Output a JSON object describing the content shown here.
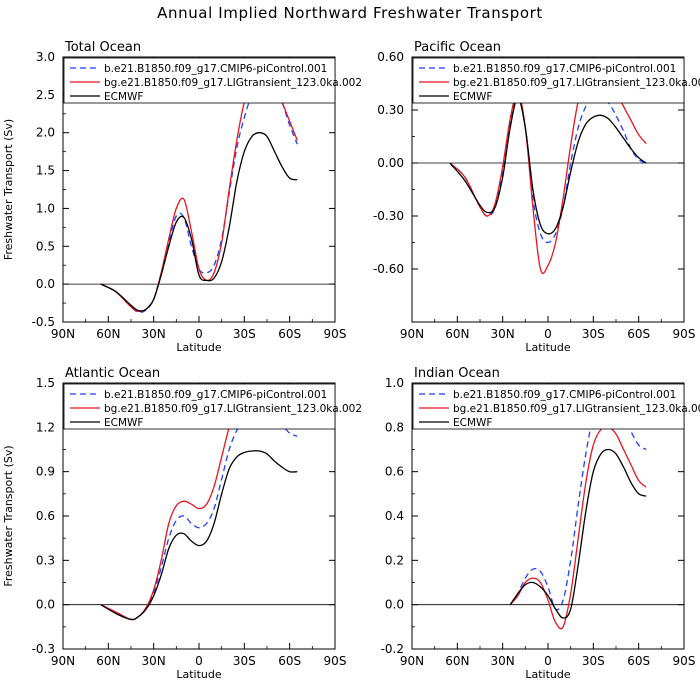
{
  "title": "Annual Implied Northward Freshwater Transport",
  "legend_entries": [
    {
      "name": "b.e21.B1850.f09_g17.CMIP6-piControl.001",
      "color": "#1f3fff",
      "dash": "6,4"
    },
    {
      "name": "bg.e21.B1850.f09_g17.LIGtransient_123.0ka.002",
      "color": "#e8141e",
      "dash": ""
    },
    {
      "name": "ECMWF",
      "color": "#000000",
      "dash": ""
    }
  ],
  "chart_data": [
    {
      "type": "line",
      "title": "Total Ocean",
      "xlabel": "Latitude",
      "ylabel": "Freshwater Transport (Sv)",
      "xlim": [
        90,
        -90
      ],
      "ylim": [
        -0.5,
        3.0
      ],
      "x_ticks": [
        90,
        60,
        30,
        0,
        -30,
        -60,
        -90
      ],
      "x_tick_labels": [
        "90N",
        "60N",
        "30N",
        "0",
        "30S",
        "60S",
        "90S"
      ],
      "y_ticks": [
        -0.5,
        0.0,
        0.5,
        1.0,
        1.5,
        2.0,
        2.5,
        3.0
      ],
      "y_tick_labels": [
        "-0.5",
        "0.0",
        "0.5",
        "1.0",
        "1.5",
        "2.0",
        "2.5",
        "3.0"
      ],
      "series": [
        {
          "name": "b.e21.B1850.f09_g17.CMIP6-piControl.001",
          "x": [
            65,
            55,
            45,
            40,
            35,
            30,
            25,
            20,
            15,
            10,
            5,
            0,
            -5,
            -10,
            -15,
            -20,
            -25,
            -30,
            -35,
            -40,
            -45,
            -50,
            -55,
            -60,
            -65
          ],
          "y": [
            0.0,
            -0.1,
            -0.3,
            -0.37,
            -0.34,
            -0.2,
            0.15,
            0.55,
            0.9,
            0.88,
            0.5,
            0.2,
            0.15,
            0.25,
            0.6,
            1.2,
            1.8,
            2.2,
            2.5,
            2.6,
            2.65,
            2.6,
            2.4,
            2.1,
            1.85
          ]
        },
        {
          "name": "bg.e21.B1850.f09_g17.LIGtransient_123.0ka.002",
          "x": [
            65,
            55,
            45,
            40,
            35,
            30,
            25,
            20,
            15,
            10,
            5,
            0,
            -5,
            -10,
            -15,
            -20,
            -25,
            -30,
            -35,
            -40,
            -45,
            -50,
            -55,
            -60,
            -65
          ],
          "y": [
            0.0,
            -0.1,
            -0.3,
            -0.36,
            -0.33,
            -0.2,
            0.15,
            0.6,
            1.0,
            1.12,
            0.7,
            0.2,
            0.05,
            0.15,
            0.55,
            1.25,
            1.9,
            2.4,
            2.65,
            2.72,
            2.7,
            2.6,
            2.4,
            2.15,
            1.9
          ]
        },
        {
          "name": "ECMWF",
          "x": [
            65,
            55,
            45,
            40,
            35,
            30,
            25,
            20,
            15,
            10,
            5,
            0,
            -5,
            -10,
            -15,
            -20,
            -25,
            -30,
            -35,
            -40,
            -45,
            -50,
            -55,
            -60,
            -65
          ],
          "y": [
            0.0,
            -0.1,
            -0.28,
            -0.35,
            -0.33,
            -0.2,
            0.12,
            0.5,
            0.82,
            0.88,
            0.6,
            0.12,
            0.05,
            0.08,
            0.3,
            0.75,
            1.35,
            1.75,
            1.95,
            2.0,
            1.95,
            1.75,
            1.55,
            1.4,
            1.38
          ]
        }
      ]
    },
    {
      "type": "line",
      "title": "Pacific Ocean",
      "xlabel": "Latitude",
      "ylabel": "",
      "xlim": [
        90,
        -90
      ],
      "ylim": [
        -0.9,
        0.6
      ],
      "x_ticks": [
        90,
        60,
        30,
        0,
        -30,
        -60,
        -90
      ],
      "x_tick_labels": [
        "90N",
        "60N",
        "30N",
        "0",
        "30S",
        "60S",
        "90S"
      ],
      "y_ticks": [
        -0.6,
        -0.3,
        0.0,
        0.3,
        0.6
      ],
      "y_tick_labels": [
        "-0.60",
        "-0.30",
        "0.00",
        "0.30",
        "0.60"
      ],
      "series": [
        {
          "name": "b.e21.B1850.f09_g17.CMIP6-piControl.001",
          "x": [
            65,
            55,
            45,
            40,
            35,
            30,
            25,
            20,
            15,
            10,
            5,
            0,
            -5,
            -10,
            -15,
            -20,
            -25,
            -30,
            -35,
            -40,
            -45,
            -50,
            -55,
            -60,
            -65
          ],
          "y": [
            0.0,
            -0.08,
            -0.25,
            -0.3,
            -0.25,
            -0.05,
            0.22,
            0.37,
            0.2,
            -0.2,
            -0.4,
            -0.45,
            -0.4,
            -0.25,
            0.0,
            0.2,
            0.32,
            0.37,
            0.37,
            0.34,
            0.27,
            0.18,
            0.08,
            0.02,
            0.0
          ]
        },
        {
          "name": "bg.e21.B1850.f09_g17.LIGtransient_123.0ka.002",
          "x": [
            65,
            55,
            45,
            40,
            35,
            30,
            25,
            20,
            15,
            10,
            5,
            0,
            -5,
            -10,
            -15,
            -20,
            -25,
            -30,
            -35,
            -40,
            -45,
            -50,
            -55,
            -60,
            -65
          ],
          "y": [
            0.0,
            -0.08,
            -0.25,
            -0.3,
            -0.23,
            -0.02,
            0.25,
            0.4,
            0.2,
            -0.25,
            -0.6,
            -0.58,
            -0.45,
            -0.2,
            0.1,
            0.35,
            0.47,
            0.5,
            0.5,
            0.46,
            0.4,
            0.32,
            0.24,
            0.16,
            0.11
          ]
        },
        {
          "name": "ECMWF",
          "x": [
            65,
            55,
            45,
            40,
            35,
            30,
            25,
            20,
            15,
            10,
            5,
            0,
            -5,
            -10,
            -15,
            -20,
            -25,
            -30,
            -35,
            -40,
            -45,
            -50,
            -55,
            -60,
            -65
          ],
          "y": [
            0.0,
            -0.1,
            -0.24,
            -0.28,
            -0.25,
            -0.08,
            0.2,
            0.37,
            0.2,
            -0.15,
            -0.35,
            -0.4,
            -0.37,
            -0.25,
            -0.05,
            0.12,
            0.22,
            0.26,
            0.27,
            0.25,
            0.2,
            0.14,
            0.08,
            0.03,
            0.0
          ]
        }
      ]
    },
    {
      "type": "line",
      "title": "Atlantic Ocean",
      "xlabel": "Latitude",
      "ylabel": "Freshwater Transport (Sv)",
      "xlim": [
        90,
        -90
      ],
      "ylim": [
        -0.3,
        1.5
      ],
      "x_ticks": [
        90,
        60,
        30,
        0,
        -30,
        -60,
        -90
      ],
      "x_tick_labels": [
        "90N",
        "60N",
        "30N",
        "0",
        "30S",
        "60S",
        "90S"
      ],
      "y_ticks": [
        -0.3,
        0.0,
        0.3,
        0.6,
        0.9,
        1.2,
        1.5
      ],
      "y_tick_labels": [
        "-0.3",
        "0.0",
        "0.3",
        "0.6",
        "0.9",
        "1.2",
        "1.5"
      ],
      "series": [
        {
          "name": "b.e21.B1850.f09_g17.CMIP6-piControl.001",
          "x": [
            65,
            55,
            45,
            40,
            35,
            30,
            25,
            20,
            15,
            10,
            5,
            0,
            -5,
            -10,
            -15,
            -20,
            -25,
            -30,
            -35,
            -40,
            -45,
            -50,
            -55,
            -60,
            -65
          ],
          "y": [
            0.0,
            -0.05,
            -0.1,
            -0.08,
            -0.02,
            0.08,
            0.25,
            0.45,
            0.57,
            0.6,
            0.55,
            0.52,
            0.55,
            0.65,
            0.85,
            1.05,
            1.18,
            1.26,
            1.3,
            1.33,
            1.32,
            1.28,
            1.22,
            1.16,
            1.14
          ]
        },
        {
          "name": "bg.e21.B1850.f09_g17.LIGtransient_123.0ka.002",
          "x": [
            65,
            55,
            45,
            40,
            35,
            30,
            25,
            20,
            15,
            10,
            5,
            0,
            -5,
            -10,
            -15,
            -20,
            -25,
            -30,
            -35,
            -40,
            -45,
            -50,
            -55,
            -60,
            -65
          ],
          "y": [
            0.0,
            -0.05,
            -0.1,
            -0.08,
            -0.02,
            0.1,
            0.3,
            0.55,
            0.67,
            0.7,
            0.68,
            0.65,
            0.68,
            0.8,
            1.0,
            1.2,
            1.33,
            1.4,
            1.44,
            1.45,
            1.43,
            1.38,
            1.32,
            1.27,
            1.25
          ]
        },
        {
          "name": "ECMWF",
          "x": [
            65,
            55,
            45,
            40,
            35,
            30,
            25,
            20,
            15,
            10,
            5,
            0,
            -5,
            -10,
            -15,
            -20,
            -25,
            -30,
            -35,
            -40,
            -45,
            -50,
            -55,
            -60,
            -65
          ],
          "y": [
            0.0,
            -0.06,
            -0.1,
            -0.08,
            -0.03,
            0.06,
            0.2,
            0.38,
            0.47,
            0.48,
            0.43,
            0.4,
            0.43,
            0.55,
            0.75,
            0.92,
            1.0,
            1.03,
            1.04,
            1.04,
            1.02,
            0.97,
            0.93,
            0.9,
            0.9
          ]
        }
      ]
    },
    {
      "type": "line",
      "title": "Indian Ocean",
      "xlabel": "Latitude",
      "ylabel": "",
      "xlim": [
        90,
        -90
      ],
      "ylim": [
        -0.2,
        1.0
      ],
      "x_ticks": [
        90,
        60,
        30,
        0,
        -30,
        -60,
        -90
      ],
      "x_tick_labels": [
        "90N",
        "60N",
        "30N",
        "0",
        "30S",
        "60S",
        "90S"
      ],
      "y_ticks": [
        -0.2,
        0.0,
        0.2,
        0.4,
        0.6,
        0.8,
        1.0
      ],
      "y_tick_labels": [
        "-0.2",
        "0.0",
        "0.2",
        "0.4",
        "0.6",
        "0.8",
        "1.0"
      ],
      "series": [
        {
          "name": "b.e21.B1850.f09_g17.CMIP6-piControl.001",
          "x": [
            25,
            20,
            15,
            10,
            5,
            0,
            -5,
            -10,
            -15,
            -20,
            -25,
            -30,
            -35,
            -40,
            -45,
            -50,
            -55,
            -60,
            -65
          ],
          "y": [
            0.0,
            0.05,
            0.12,
            0.16,
            0.15,
            0.08,
            -0.02,
            0.02,
            0.2,
            0.45,
            0.68,
            0.85,
            0.94,
            0.96,
            0.92,
            0.85,
            0.78,
            0.72,
            0.7
          ]
        },
        {
          "name": "bg.e21.B1850.f09_g17.LIGtransient_123.0ka.002",
          "x": [
            25,
            20,
            15,
            10,
            5,
            0,
            -5,
            -10,
            -15,
            -20,
            -25,
            -30,
            -35,
            -40,
            -45,
            -50,
            -55,
            -60,
            -65
          ],
          "y": [
            0.0,
            0.04,
            0.1,
            0.12,
            0.1,
            0.02,
            -0.08,
            -0.1,
            0.05,
            0.3,
            0.55,
            0.72,
            0.79,
            0.8,
            0.77,
            0.7,
            0.63,
            0.56,
            0.53
          ]
        },
        {
          "name": "ECMWF",
          "x": [
            25,
            20,
            15,
            10,
            5,
            0,
            -5,
            -10,
            -15,
            -20,
            -25,
            -30,
            -35,
            -40,
            -45,
            -50,
            -55,
            -60,
            -65
          ],
          "y": [
            0.0,
            0.05,
            0.09,
            0.1,
            0.08,
            0.04,
            -0.02,
            -0.06,
            -0.02,
            0.18,
            0.42,
            0.6,
            0.68,
            0.7,
            0.68,
            0.62,
            0.55,
            0.5,
            0.49
          ]
        }
      ]
    }
  ]
}
